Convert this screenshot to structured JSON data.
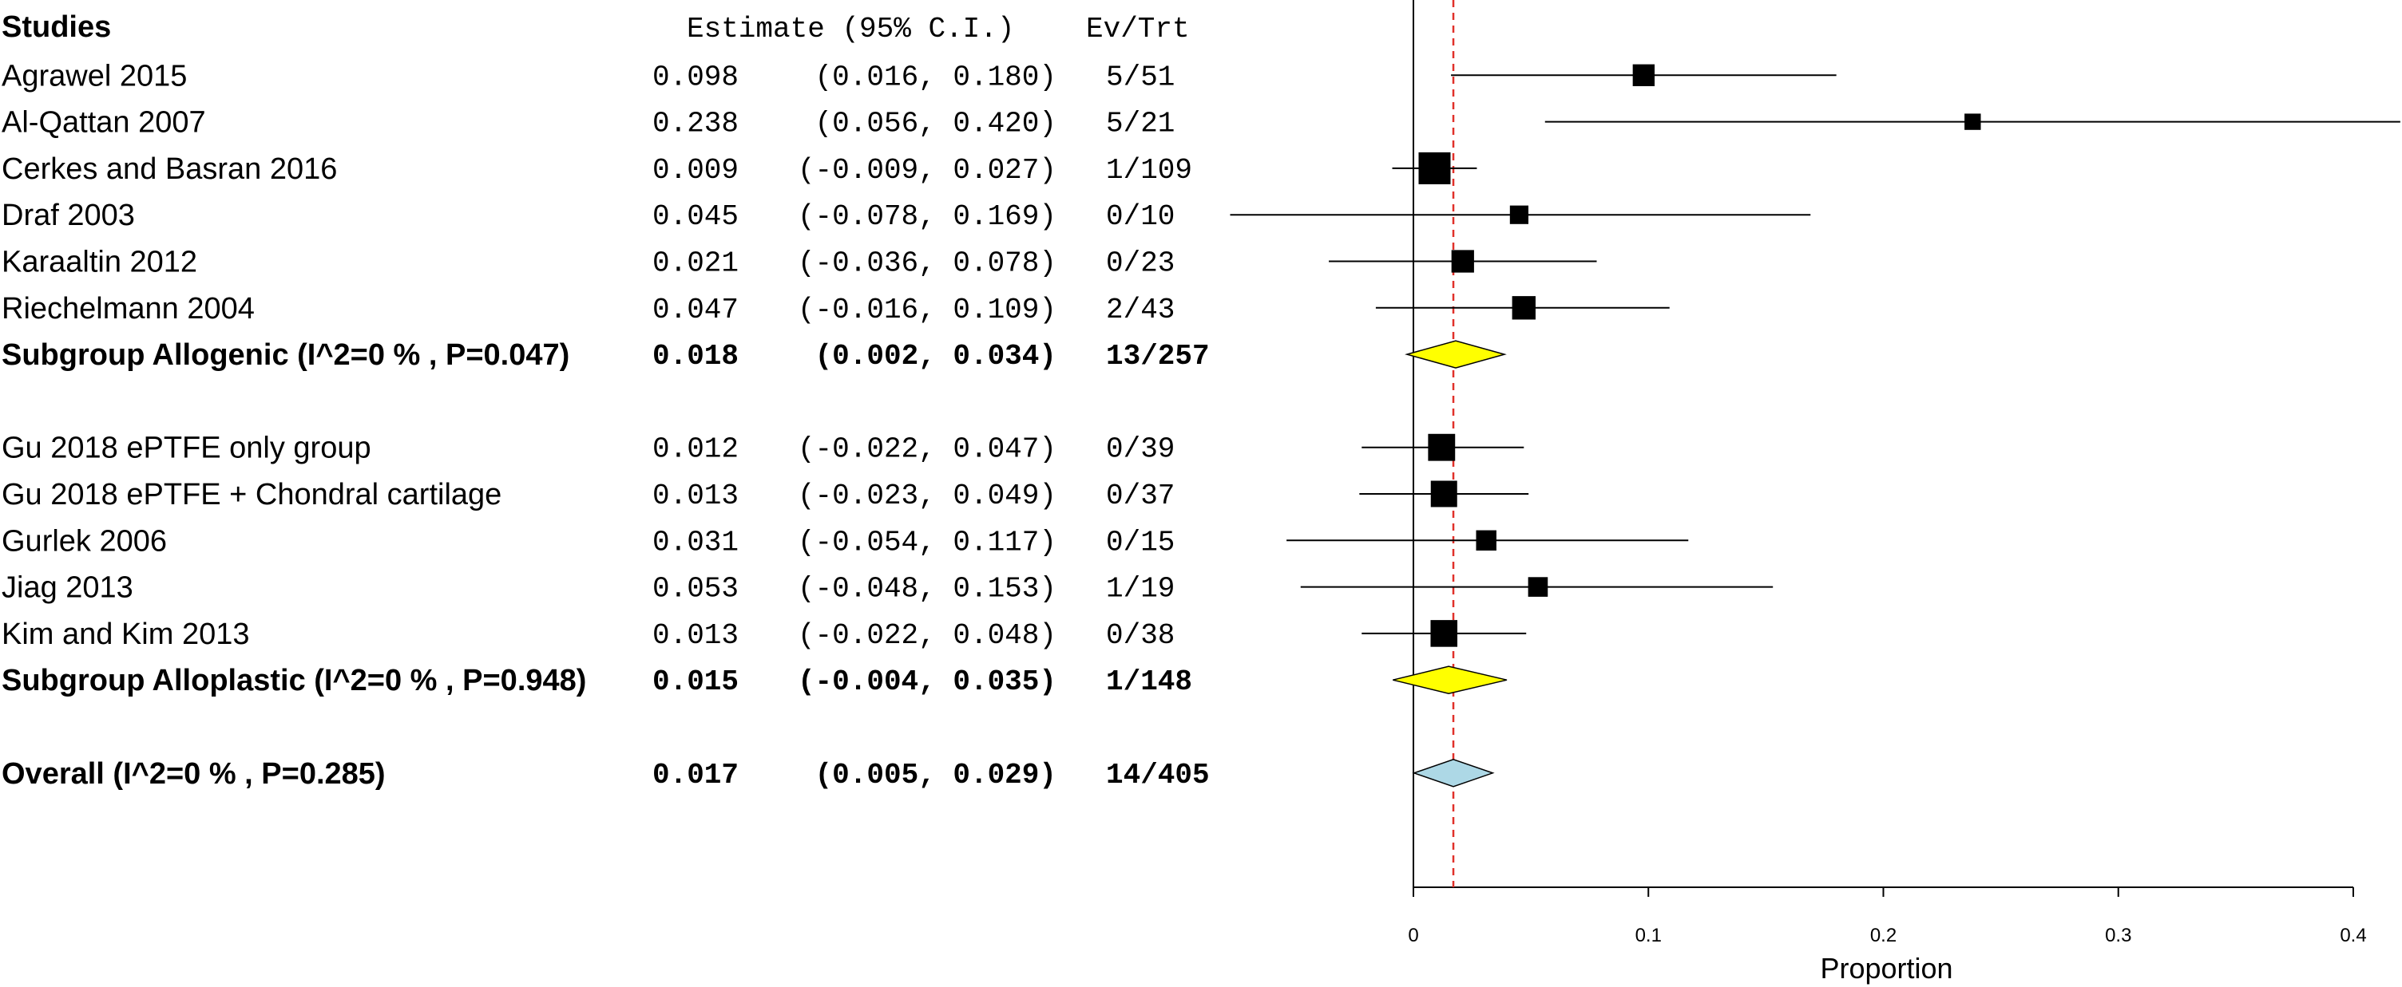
{
  "chart_data": {
    "type": "forest",
    "header": {
      "studies": "Studies",
      "estimate": "Estimate (95% C.I.)",
      "evtrt": "Ev/Trt"
    },
    "xlabel": "Proportion",
    "xlim": [
      0,
      0.4
    ],
    "x_ticks": [
      0,
      0.1,
      0.2,
      0.3,
      0.4
    ],
    "x_tick_labels": [
      "0",
      "0.1",
      "0.2",
      "0.3",
      "0.4"
    ],
    "reference_line": 0.017,
    "reference_line_color": "#e0302a",
    "rows": [
      {
        "kind": "study",
        "row": 1,
        "label": "Agrawel 2015",
        "est_text": "0.098",
        "ci_text": "(0.016, 0.180)",
        "evtrt": "5/51",
        "est": 0.098,
        "lo": 0.016,
        "hi": 0.18,
        "weight": 0.55
      },
      {
        "kind": "study",
        "row": 2,
        "label": "Al-Qattan 2007",
        "est_text": "0.238",
        "ci_text": "(0.056, 0.420)",
        "evtrt": "5/21",
        "est": 0.238,
        "lo": 0.056,
        "hi": 0.42,
        "weight": 0.3
      },
      {
        "kind": "study",
        "row": 3,
        "label": "Cerkes and Basran 2016",
        "est_text": "0.009",
        "ci_text": "(-0.009, 0.027)",
        "evtrt": "1/109",
        "est": 0.009,
        "lo": -0.009,
        "hi": 0.027,
        "weight": 1.0
      },
      {
        "kind": "study",
        "row": 4,
        "label": "Draf 2003",
        "est_text": "0.045",
        "ci_text": "(-0.078, 0.169)",
        "evtrt": "0/10",
        "est": 0.045,
        "lo": -0.078,
        "hi": 0.169,
        "weight": 0.4
      },
      {
        "kind": "study",
        "row": 5,
        "label": "Karaaltin 2012",
        "est_text": "0.021",
        "ci_text": "(-0.036, 0.078)",
        "evtrt": "0/23",
        "est": 0.021,
        "lo": -0.036,
        "hi": 0.078,
        "weight": 0.58
      },
      {
        "kind": "study",
        "row": 6,
        "label": "Riechelmann 2004",
        "est_text": "0.047",
        "ci_text": "(-0.016, 0.109)",
        "evtrt": "2/43",
        "est": 0.047,
        "lo": -0.016,
        "hi": 0.109,
        "weight": 0.62
      },
      {
        "kind": "subgroup",
        "row": 7,
        "label": "Subgroup Allogenic (I^2=0 % , P=0.047)",
        "est_text": "0.018",
        "ci_text": "(0.002, 0.034)",
        "evtrt": "13/257",
        "est": 0.018,
        "lo": 0.002,
        "hi": 0.034,
        "fill": "#ffff00"
      },
      {
        "kind": "study",
        "row": 9,
        "label": "Gu 2018 ePTFE only group",
        "est_text": "0.012",
        "ci_text": "(-0.022, 0.047)",
        "evtrt": "0/39",
        "est": 0.012,
        "lo": -0.022,
        "hi": 0.047,
        "weight": 0.78
      },
      {
        "kind": "study",
        "row": 10,
        "label": "Gu 2018 ePTFE + Chondral cartilage",
        "est_text": "0.013",
        "ci_text": "(-0.023, 0.049)",
        "evtrt": "0/37",
        "est": 0.013,
        "lo": -0.023,
        "hi": 0.049,
        "weight": 0.75
      },
      {
        "kind": "study",
        "row": 11,
        "label": "Gurlek 2006",
        "est_text": "0.031",
        "ci_text": "(-0.054, 0.117)",
        "evtrt": "0/15",
        "est": 0.031,
        "lo": -0.054,
        "hi": 0.117,
        "weight": 0.48
      },
      {
        "kind": "study",
        "row": 12,
        "label": "Jiag 2013",
        "est_text": "0.053",
        "ci_text": "(-0.048, 0.153)",
        "evtrt": "1/19",
        "est": 0.053,
        "lo": -0.048,
        "hi": 0.153,
        "weight": 0.45
      },
      {
        "kind": "study",
        "row": 13,
        "label": "Kim and Kim 2013",
        "est_text": "0.013",
        "ci_text": "(-0.022, 0.048)",
        "evtrt": "0/38",
        "est": 0.013,
        "lo": -0.022,
        "hi": 0.048,
        "weight": 0.77
      },
      {
        "kind": "subgroup",
        "row": 14,
        "label": "Subgroup Alloplastic (I^2=0 % , P=0.948)",
        "est_text": "0.015",
        "ci_text": "(-0.004, 0.035)",
        "evtrt": "1/148",
        "est": 0.015,
        "lo": -0.004,
        "hi": 0.035,
        "fill": "#ffff00"
      },
      {
        "kind": "overall",
        "row": 16,
        "label": "Overall (I^2=0 % , P=0.285)",
        "est_text": "0.017",
        "ci_text": "(0.005, 0.029)",
        "evtrt": "14/405",
        "est": 0.017,
        "lo": 0.005,
        "hi": 0.029,
        "fill": "#add8e6"
      }
    ]
  }
}
